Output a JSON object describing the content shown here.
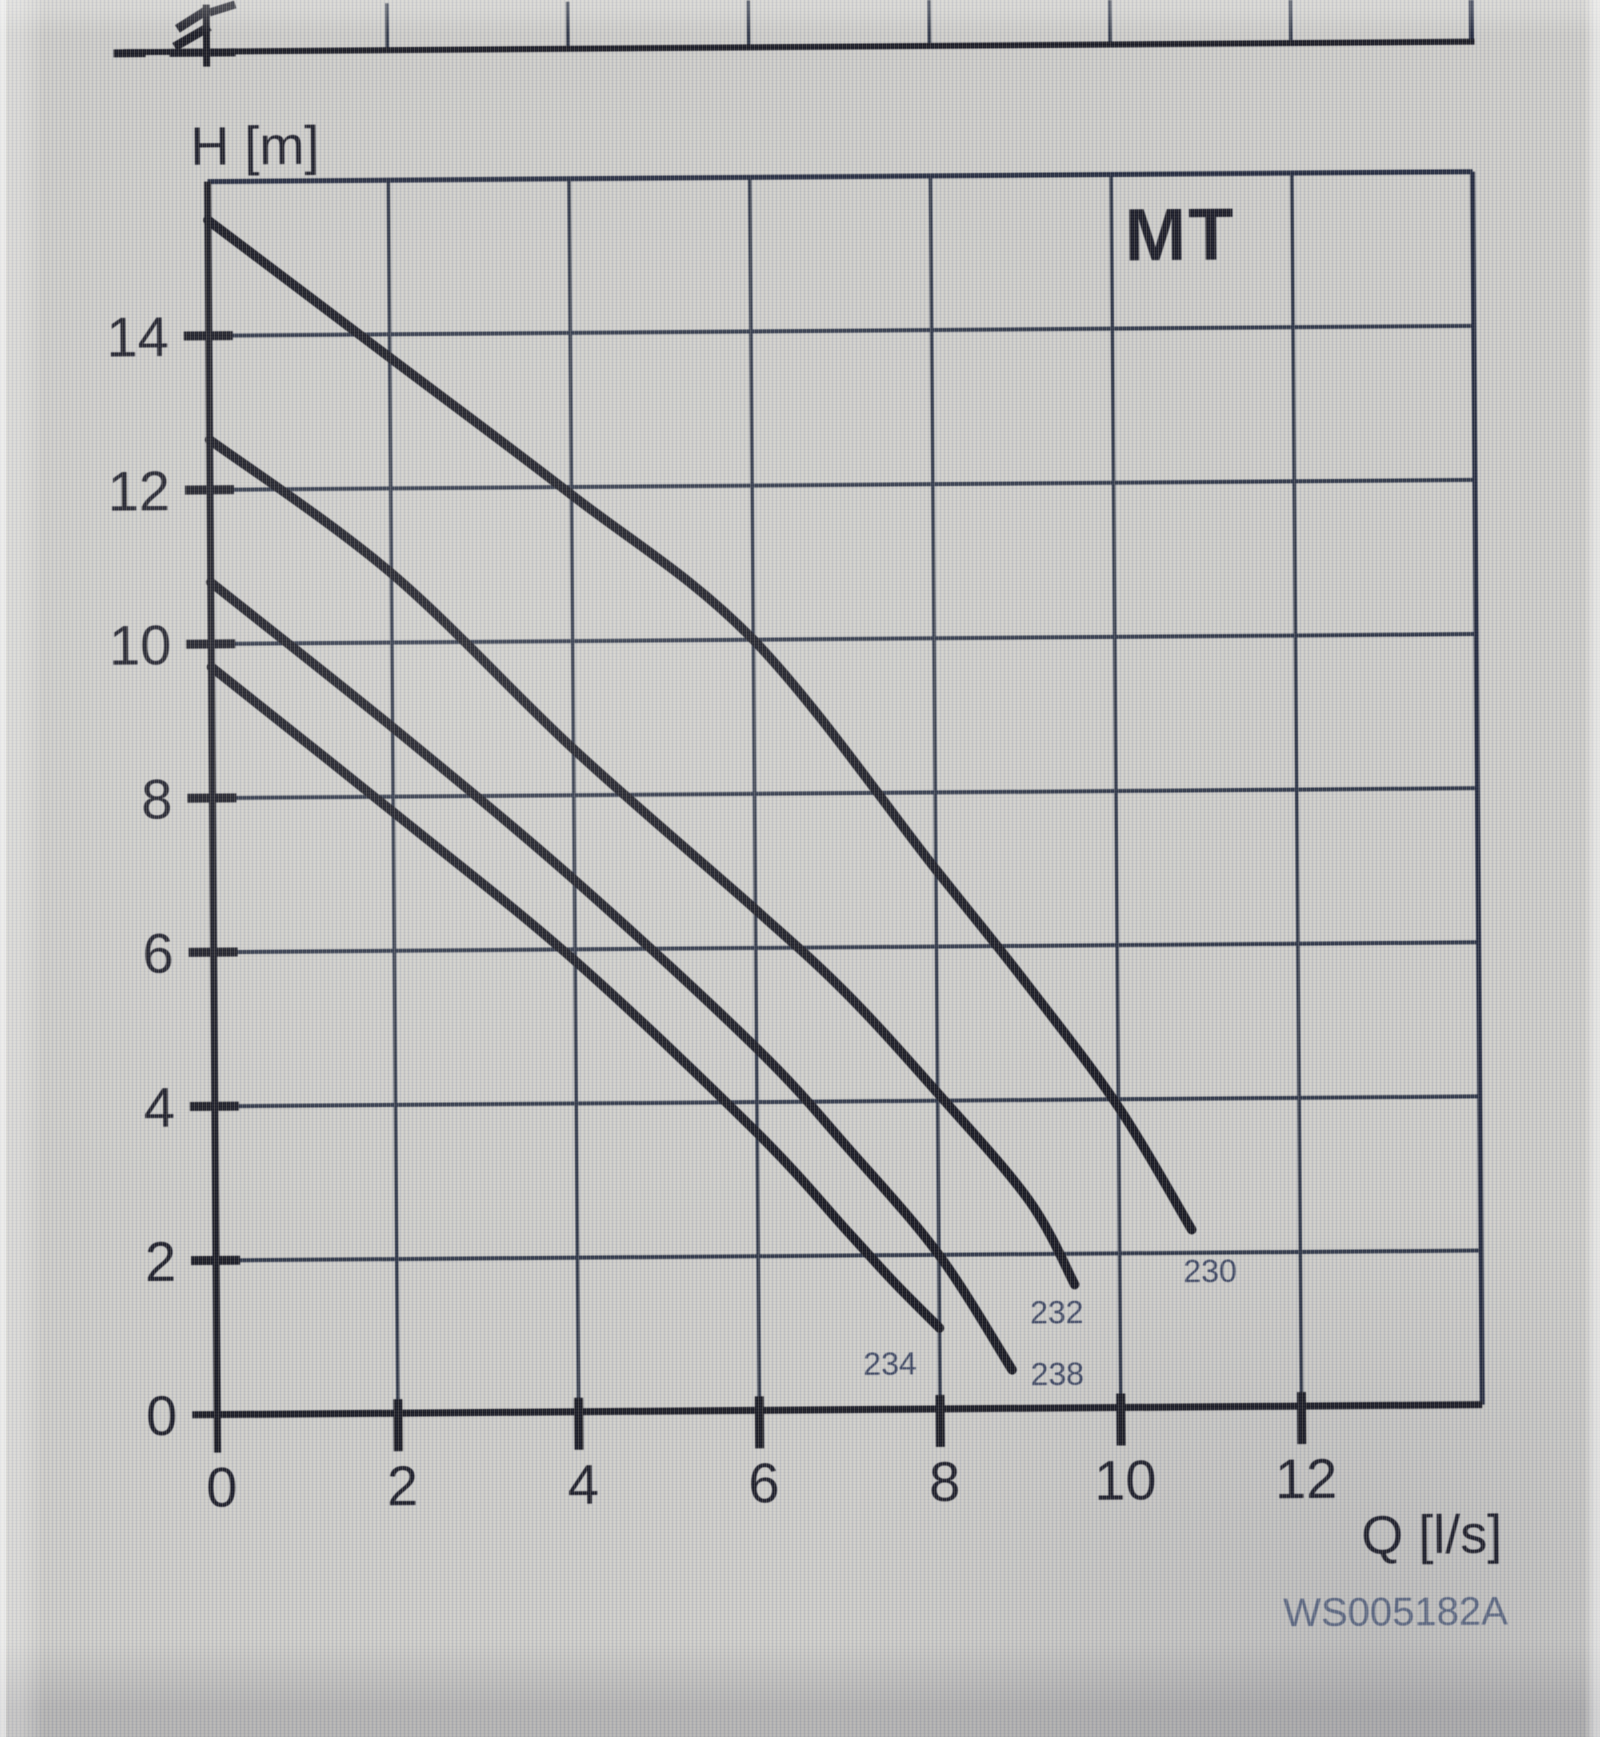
{
  "meta": {
    "watermark_code": "WS005182A"
  },
  "colors": {
    "ink": "#16161f",
    "grid": "#2a3142",
    "border": "#20263a",
    "curve": "#14141d",
    "curve_label": "#39425e",
    "background": "#cbcac7",
    "watermark": "#515f7d"
  },
  "chart_data": {
    "type": "line",
    "title": "MT",
    "xlabel": "Q [l/s]",
    "ylabel": "H [m]",
    "xlim": [
      0,
      14
    ],
    "ylim": [
      0,
      16
    ],
    "x_ticks": [
      0,
      2,
      4,
      6,
      8,
      10,
      12
    ],
    "y_ticks": [
      0,
      2,
      4,
      6,
      8,
      10,
      12,
      14
    ],
    "grid": true,
    "legend_position": "curve-end-labels",
    "series": [
      {
        "name": "230",
        "points": [
          [
            0,
            15.5
          ],
          [
            2,
            13.7
          ],
          [
            4,
            11.9
          ],
          [
            6,
            10.0
          ],
          [
            8,
            7.0
          ],
          [
            9,
            5.5
          ],
          [
            10,
            3.9
          ],
          [
            10.8,
            2.3
          ]
        ],
        "label_pos": [
          11.0,
          1.62
        ]
      },
      {
        "name": "232",
        "points": [
          [
            0,
            12.65
          ],
          [
            2,
            10.9
          ],
          [
            4,
            8.6
          ],
          [
            6,
            6.5
          ],
          [
            7,
            5.4
          ],
          [
            8,
            4.1
          ],
          [
            9,
            2.7
          ],
          [
            9.5,
            1.6
          ]
        ],
        "label_pos": [
          9.3,
          1.1
        ]
      },
      {
        "name": "234",
        "points": [
          [
            0,
            10.8
          ],
          [
            2,
            8.9
          ],
          [
            4,
            6.9
          ],
          [
            6,
            4.7
          ],
          [
            7,
            3.4
          ],
          [
            8,
            2.0
          ],
          [
            8.8,
            0.5
          ]
        ],
        "label_pos": [
          7.45,
          0.45
        ]
      },
      {
        "name": "238",
        "points": [
          [
            0,
            9.7
          ],
          [
            2,
            7.8
          ],
          [
            4,
            5.85
          ],
          [
            6,
            3.6
          ],
          [
            7,
            2.3
          ],
          [
            7.5,
            1.65
          ],
          [
            8,
            1.05
          ]
        ],
        "label_pos": [
          9.3,
          0.3
        ]
      }
    ]
  }
}
